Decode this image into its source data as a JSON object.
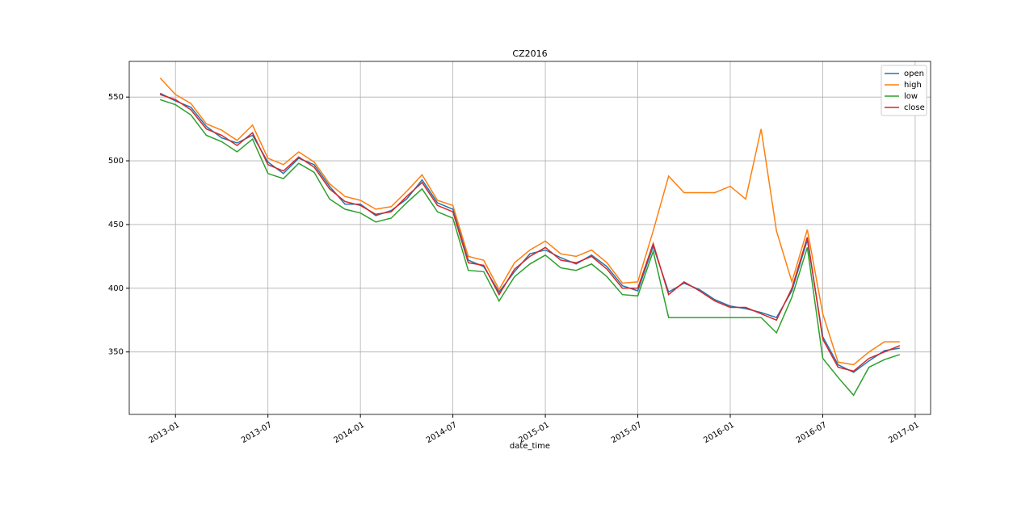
{
  "chart_data": {
    "type": "line",
    "title": "CZ2016",
    "x_label": "date_time",
    "x": [
      "2012-12",
      "2013-01",
      "2013-02",
      "2013-03",
      "2013-04",
      "2013-05",
      "2013-06",
      "2013-07",
      "2013-08",
      "2013-09",
      "2013-10",
      "2013-11",
      "2013-12",
      "2014-01",
      "2014-02",
      "2014-03",
      "2014-04",
      "2014-05",
      "2014-06",
      "2014-07",
      "2014-08",
      "2014-09",
      "2014-10",
      "2014-11",
      "2014-12",
      "2015-01",
      "2015-02",
      "2015-03",
      "2015-04",
      "2015-05",
      "2015-06",
      "2015-07",
      "2015-08",
      "2015-09",
      "2015-10",
      "2015-11",
      "2015-12",
      "2016-01",
      "2016-02",
      "2016-03",
      "2016-04",
      "2016-05",
      "2016-06",
      "2016-07",
      "2016-08",
      "2016-09",
      "2016-10",
      "2016-11",
      "2016-12"
    ],
    "series": [
      {
        "name": "open",
        "color": "#1f77b4",
        "values": [
          553,
          547,
          542,
          527,
          518,
          514,
          520,
          499,
          490,
          502,
          497,
          480,
          466,
          466,
          457,
          461,
          470,
          485,
          467,
          462,
          422,
          417,
          397,
          413,
          427,
          430,
          424,
          419,
          426,
          417,
          402,
          398,
          433,
          397,
          404,
          399,
          391,
          386,
          384,
          381,
          377,
          398,
          438,
          362,
          340,
          334,
          343,
          351,
          353
        ]
      },
      {
        "name": "high",
        "color": "#ff7f0e",
        "values": [
          565,
          552,
          545,
          529,
          524,
          516,
          528,
          502,
          497,
          507,
          499,
          482,
          472,
          469,
          462,
          464,
          476,
          489,
          469,
          465,
          425,
          422,
          399,
          420,
          430,
          437,
          427,
          425,
          430,
          420,
          404,
          405,
          445,
          488,
          475,
          475,
          475,
          480,
          470,
          525,
          445,
          405,
          446,
          380,
          342,
          340,
          350,
          358,
          358
        ]
      },
      {
        "name": "low",
        "color": "#2ca02c",
        "values": [
          548,
          544,
          536,
          520,
          515,
          507,
          517,
          490,
          486,
          498,
          491,
          470,
          462,
          459,
          452,
          455,
          467,
          478,
          460,
          455,
          414,
          413,
          390,
          409,
          419,
          426,
          416,
          414,
          419,
          409,
          395,
          394,
          429,
          377,
          377,
          377,
          377,
          377,
          377,
          377,
          365,
          393,
          432,
          345,
          330,
          316,
          338,
          344,
          348
        ]
      },
      {
        "name": "close",
        "color": "#d62728",
        "values": [
          552,
          548,
          540,
          525,
          520,
          512,
          522,
          497,
          492,
          503,
          495,
          478,
          468,
          465,
          458,
          460,
          472,
          483,
          465,
          460,
          420,
          418,
          395,
          415,
          425,
          432,
          422,
          420,
          425,
          415,
          400,
          400,
          435,
          395,
          405,
          398,
          390,
          385,
          385,
          380,
          375,
          400,
          440,
          360,
          338,
          335,
          345,
          350,
          355
        ]
      }
    ],
    "xlim": [
      "2012-10",
      "2017-02"
    ],
    "xticks": [
      "2013-01",
      "2013-07",
      "2014-01",
      "2014-07",
      "2015-01",
      "2015-07",
      "2016-01",
      "2016-07",
      "2017-01"
    ],
    "ylim": [
      301,
      578
    ],
    "yticks": [
      350,
      400,
      450,
      500,
      550
    ],
    "grid": true,
    "legend": "upper right"
  }
}
